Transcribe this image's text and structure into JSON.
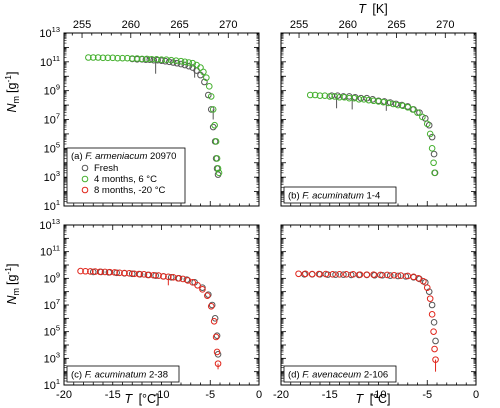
{
  "figure": {
    "top_axis": {
      "symbol": "T",
      "unit": "[K]",
      "ticks": [
        "255",
        "260",
        "265",
        "270"
      ]
    },
    "bottom_axis": {
      "symbol": "T",
      "unit": "[°C]",
      "ticks": [
        "-20",
        "-15",
        "-10",
        "-5",
        "0"
      ]
    },
    "y_axis": {
      "symbol": "N",
      "subscript": "m",
      "unit": "[g",
      "unit_exp": "-1",
      "unit_close": "]"
    },
    "legend": [
      "Fresh",
      "4 months, 6 °C",
      "8 months, -20 °C"
    ],
    "colors": {
      "fresh": "#555555",
      "four_months": "#44b02e",
      "eight_months": "#e0261c"
    }
  },
  "chart_data": [
    {
      "type": "scatter",
      "panel": "a",
      "label_prefix": "(a) ",
      "species": "F. armeniacum",
      "strain": " 20970",
      "xlim": [
        -20,
        0
      ],
      "ylim_log10": [
        1,
        13
      ],
      "yscale": "log",
      "top_xlim_K": [
        253.15,
        273.15
      ],
      "legend_position": "bottom-left",
      "series": [
        {
          "name": "Fresh",
          "color": "#555555",
          "x": [
            -13.0,
            -12.5,
            -12.0,
            -11.6,
            -11.2,
            -10.8,
            -10.4,
            -10.0,
            -9.6,
            -9.2,
            -8.8,
            -8.4,
            -8.0,
            -7.6,
            -7.2,
            -6.8,
            -6.4,
            -6.0,
            -5.6,
            -5.2,
            -4.9,
            -4.7,
            -4.5,
            -4.4,
            -4.3,
            -4.2
          ],
          "y": [
            160000000000.0,
            150000000000.0,
            150000000000.0,
            140000000000.0,
            140000000000.0,
            130000000000.0,
            130000000000.0,
            120000000000.0,
            110000000000.0,
            100000000000.0,
            90000000000.0,
            80000000000.0,
            70000000000.0,
            60000000000.0,
            50000000000.0,
            40000000000.0,
            25000000000.0,
            12000000000.0,
            4000000000.0,
            500000000.0,
            50000000.0,
            3000000.0,
            300000.0,
            20000.0,
            4000.0,
            1500.0
          ]
        },
        {
          "name": "4 months, 6 °C",
          "color": "#44b02e",
          "x": [
            -17.5,
            -17.0,
            -16.5,
            -16.0,
            -15.5,
            -15.0,
            -14.5,
            -14.0,
            -13.5,
            -13.0,
            -12.5,
            -12.0,
            -11.5,
            -11.0,
            -10.5,
            -10.0,
            -9.5,
            -9.0,
            -8.5,
            -8.0,
            -7.6,
            -7.2,
            -6.8,
            -6.4,
            -6.0,
            -5.7,
            -5.4,
            -5.1,
            -4.9,
            -4.7,
            -4.55,
            -4.4,
            -4.3,
            -4.2,
            -4.1
          ],
          "y": [
            200000000000.0,
            200000000000.0,
            200000000000.0,
            190000000000.0,
            190000000000.0,
            190000000000.0,
            180000000000.0,
            180000000000.0,
            180000000000.0,
            170000000000.0,
            170000000000.0,
            160000000000.0,
            160000000000.0,
            150000000000.0,
            150000000000.0,
            140000000000.0,
            140000000000.0,
            130000000000.0,
            120000000000.0,
            110000000000.0,
            100000000000.0,
            90000000000.0,
            80000000000.0,
            60000000000.0,
            40000000000.0,
            20000000000.0,
            8000000000.0,
            2000000000.0,
            400000000.0,
            50000000.0,
            4000000.0,
            300000.0,
            20000.0,
            4000.0,
            2000.0
          ]
        }
      ],
      "error_bars": [
        {
          "x": -10.6,
          "y": 130000000000.0,
          "low": 15000000000.0
        },
        {
          "x": -6.6,
          "y": 50000000000.0,
          "low": 8000000000.0
        },
        {
          "x": -4.7,
          "y": 50000000.0,
          "low": 10000000.0
        }
      ]
    },
    {
      "type": "scatter",
      "panel": "b",
      "label_prefix": "(b) ",
      "species": "F. acuminatum",
      "strain": " 1-4",
      "xlim": [
        -20,
        0
      ],
      "ylim_log10": [
        1,
        13
      ],
      "yscale": "log",
      "top_xlim_K": [
        253.15,
        273.15
      ],
      "series": [
        {
          "name": "Fresh",
          "color": "#555555",
          "x": [
            -14.8,
            -14.2,
            -13.6,
            -13.0,
            -12.4,
            -11.8,
            -11.2,
            -10.6,
            -10.0,
            -9.4,
            -8.8,
            -8.2,
            -7.6,
            -7.0,
            -6.4,
            -5.8,
            -5.2,
            -4.8,
            -4.5,
            -4.3,
            -4.2
          ],
          "y": [
            450000000.0,
            450000000.0,
            400000000.0,
            400000000.0,
            350000000.0,
            300000000.0,
            300000000.0,
            250000000.0,
            200000000.0,
            180000000.0,
            150000000.0,
            120000000.0,
            100000000.0,
            80000000.0,
            50000000.0,
            30000000.0,
            12000000.0,
            4000000.0,
            600000.0,
            40000.0,
            2000.0
          ]
        },
        {
          "name": "4 months, 6 °C",
          "color": "#44b02e",
          "x": [
            -17.0,
            -16.5,
            -16.0,
            -15.5,
            -15.0,
            -14.5,
            -14.0,
            -13.5,
            -13.0,
            -12.5,
            -12.0,
            -11.5,
            -11.0,
            -10.5,
            -10.0,
            -9.5,
            -9.0,
            -8.5,
            -8.0,
            -7.5,
            -7.0,
            -6.5,
            -6.0,
            -5.5,
            -5.0,
            -4.7,
            -4.5,
            -4.35,
            -4.25
          ],
          "y": [
            500000000.0,
            500000000.0,
            450000000.0,
            450000000.0,
            400000000.0,
            400000000.0,
            350000000.0,
            350000000.0,
            300000000.0,
            300000000.0,
            250000000.0,
            250000000.0,
            220000000.0,
            200000000.0,
            180000000.0,
            160000000.0,
            140000000.0,
            120000000.0,
            100000000.0,
            90000000.0,
            70000000.0,
            50000000.0,
            30000000.0,
            15000000.0,
            5000000.0,
            1000000.0,
            100000.0,
            10000.0,
            2000.0
          ]
        }
      ],
      "error_bars": [
        {
          "x": -14.3,
          "y": 400000000.0,
          "low": 60000000.0
        },
        {
          "x": -12.7,
          "y": 300000000.0,
          "low": 50000000.0
        },
        {
          "x": -9.2,
          "y": 160000000.0,
          "low": 40000000.0
        }
      ]
    },
    {
      "type": "scatter",
      "panel": "c",
      "label_prefix": "(c) ",
      "species": "F. acuminatum",
      "strain": " 2-38",
      "xlim": [
        -20,
        0
      ],
      "ylim_log10": [
        1,
        13
      ],
      "yscale": "log",
      "series": [
        {
          "name": "Fresh",
          "color": "#555555",
          "x": [
            -17.0,
            -16.2,
            -15.4,
            -14.6,
            -13.8,
            -13.0,
            -12.2,
            -11.4,
            -10.6,
            -9.8,
            -9.0,
            -8.2,
            -7.4,
            -6.6,
            -5.8,
            -5.2,
            -4.8,
            -4.5,
            -4.3,
            -4.2
          ],
          "y": [
            3000000000.0,
            3000000000.0,
            2800000000.0,
            2600000000.0,
            2400000000.0,
            2200000000.0,
            2000000000.0,
            1800000000.0,
            1600000000.0,
            1400000000.0,
            1200000000.0,
            1000000000.0,
            800000000.0,
            500000000.0,
            200000000.0,
            60000000.0,
            10000000.0,
            1000000.0,
            50000.0,
            2000.0
          ]
        },
        {
          "name": "8 months, -20 °C",
          "color": "#e0261c",
          "x": [
            -18.3,
            -17.8,
            -17.3,
            -16.8,
            -16.3,
            -15.8,
            -15.3,
            -14.8,
            -14.3,
            -13.8,
            -13.3,
            -12.8,
            -12.3,
            -11.8,
            -11.3,
            -10.8,
            -10.3,
            -9.8,
            -9.3,
            -8.8,
            -8.3,
            -7.8,
            -7.3,
            -6.8,
            -6.3,
            -5.8,
            -5.3,
            -4.9,
            -4.6,
            -4.4,
            -4.3,
            -4.2
          ],
          "y": [
            3500000000.0,
            3400000000.0,
            3300000000.0,
            3200000000.0,
            3100000000.0,
            3000000000.0,
            2900000000.0,
            2800000000.0,
            2600000000.0,
            2500000000.0,
            2400000000.0,
            2200000000.0,
            2100000000.0,
            2000000000.0,
            1800000000.0,
            1700000000.0,
            1600000000.0,
            1400000000.0,
            1300000000.0,
            1200000000.0,
            1000000000.0,
            900000000.0,
            700000000.0,
            500000000.0,
            300000000.0,
            150000000.0,
            50000000.0,
            8000000.0,
            600000.0,
            40000.0,
            3000.0,
            400.0
          ]
        }
      ],
      "error_bars": [
        {
          "x": -9.3,
          "y": 1300000000.0,
          "low": 300000000.0
        },
        {
          "x": -4.2,
          "y": 400.0,
          "low": 150.0
        }
      ]
    },
    {
      "type": "scatter",
      "panel": "d",
      "label_prefix": "(d) ",
      "species": "F. avenaceum",
      "strain": " 2-106",
      "xlim": [
        -20,
        0
      ],
      "ylim_log10": [
        1,
        13
      ],
      "yscale": "log",
      "series": [
        {
          "name": "Fresh",
          "color": "#555555",
          "x": [
            -17.6,
            -16.8,
            -16.0,
            -15.2,
            -14.4,
            -13.6,
            -12.8,
            -12.0,
            -11.2,
            -10.4,
            -9.6,
            -8.8,
            -8.0,
            -7.2,
            -6.4,
            -5.8,
            -5.2,
            -4.8,
            -4.5,
            -4.3,
            -4.15
          ],
          "y": [
            2000000000.0,
            2000000000.0,
            2000000000.0,
            1900000000.0,
            1900000000.0,
            1900000000.0,
            1800000000.0,
            1800000000.0,
            1800000000.0,
            1700000000.0,
            1700000000.0,
            1600000000.0,
            1500000000.0,
            1400000000.0,
            1200000000.0,
            900000000.0,
            500000000.0,
            100000000.0,
            10000000.0,
            500000.0,
            20000.0
          ]
        },
        {
          "name": "8 months, -20 °C",
          "color": "#e0261c",
          "x": [
            -18.2,
            -17.5,
            -16.8,
            -16.1,
            -15.4,
            -14.7,
            -14.0,
            -13.3,
            -12.6,
            -11.9,
            -11.2,
            -10.5,
            -9.8,
            -9.1,
            -8.4,
            -7.7,
            -7.0,
            -6.4,
            -5.9,
            -5.4,
            -5.0,
            -4.7,
            -4.5,
            -4.35,
            -4.25,
            -4.15
          ],
          "y": [
            2200000000.0,
            2200000000.0,
            2100000000.0,
            2100000000.0,
            2100000000.0,
            2000000000.0,
            2000000000.0,
            2000000000.0,
            2000000000.0,
            1900000000.0,
            1900000000.0,
            1900000000.0,
            1800000000.0,
            1800000000.0,
            1700000000.0,
            1600000000.0,
            1500000000.0,
            1300000000.0,
            1000000000.0,
            600000000.0,
            200000000.0,
            30000000.0,
            2000000.0,
            100000.0,
            5000.0,
            800.0
          ]
        }
      ],
      "error_bars": [
        {
          "x": -4.15,
          "y": 800.0,
          "low": 100.0
        }
      ]
    }
  ]
}
